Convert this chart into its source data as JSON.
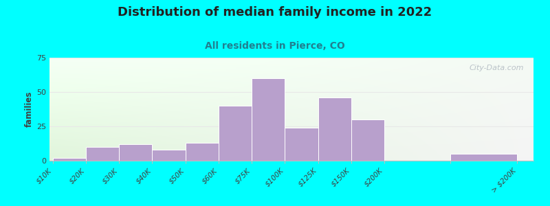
{
  "title": "Distribution of median family income in 2022",
  "subtitle": "All residents in Pierce, CO",
  "ylabel": "families",
  "background_color": "#00FFFF",
  "bar_color": "#b8a0cc",
  "bar_edge_color": "#ffffff",
  "categories": [
    "$10K",
    "$20K",
    "$30K",
    "$40K",
    "$50K",
    "$60K",
    "$75K",
    "$100K",
    "$125K",
    "$150K",
    "$200K",
    "> $200K"
  ],
  "values": [
    2,
    10,
    12,
    8,
    13,
    40,
    60,
    24,
    46,
    30,
    0,
    5
  ],
  "bar_widths": [
    1,
    1,
    1,
    1,
    1,
    1,
    1,
    1,
    1,
    1,
    1,
    2
  ],
  "bar_lefts": [
    0,
    1,
    2,
    3,
    4,
    5,
    6,
    7,
    8,
    9,
    10,
    12
  ],
  "xlim": [
    -0.1,
    14.5
  ],
  "xtick_positions": [
    0,
    1,
    2,
    3,
    4,
    5,
    6,
    7,
    8,
    9,
    10,
    12,
    14
  ],
  "xtick_labels": [
    "$10K",
    "$20K",
    "$30K",
    "$40K",
    "$50K",
    "$60K",
    "$75K",
    "$100K",
    "$125K",
    "$150K",
    "$200K",
    "",
    "> $200K"
  ],
  "ylim": [
    0,
    75
  ],
  "yticks": [
    0,
    25,
    50,
    75
  ],
  "title_fontsize": 13,
  "subtitle_fontsize": 10,
  "subtitle_color": "#208090",
  "watermark_text": "City-Data.com",
  "watermark_color": "#b0b8c0",
  "grid_color": "#e8e8e8",
  "tick_label_fontsize": 7.5
}
